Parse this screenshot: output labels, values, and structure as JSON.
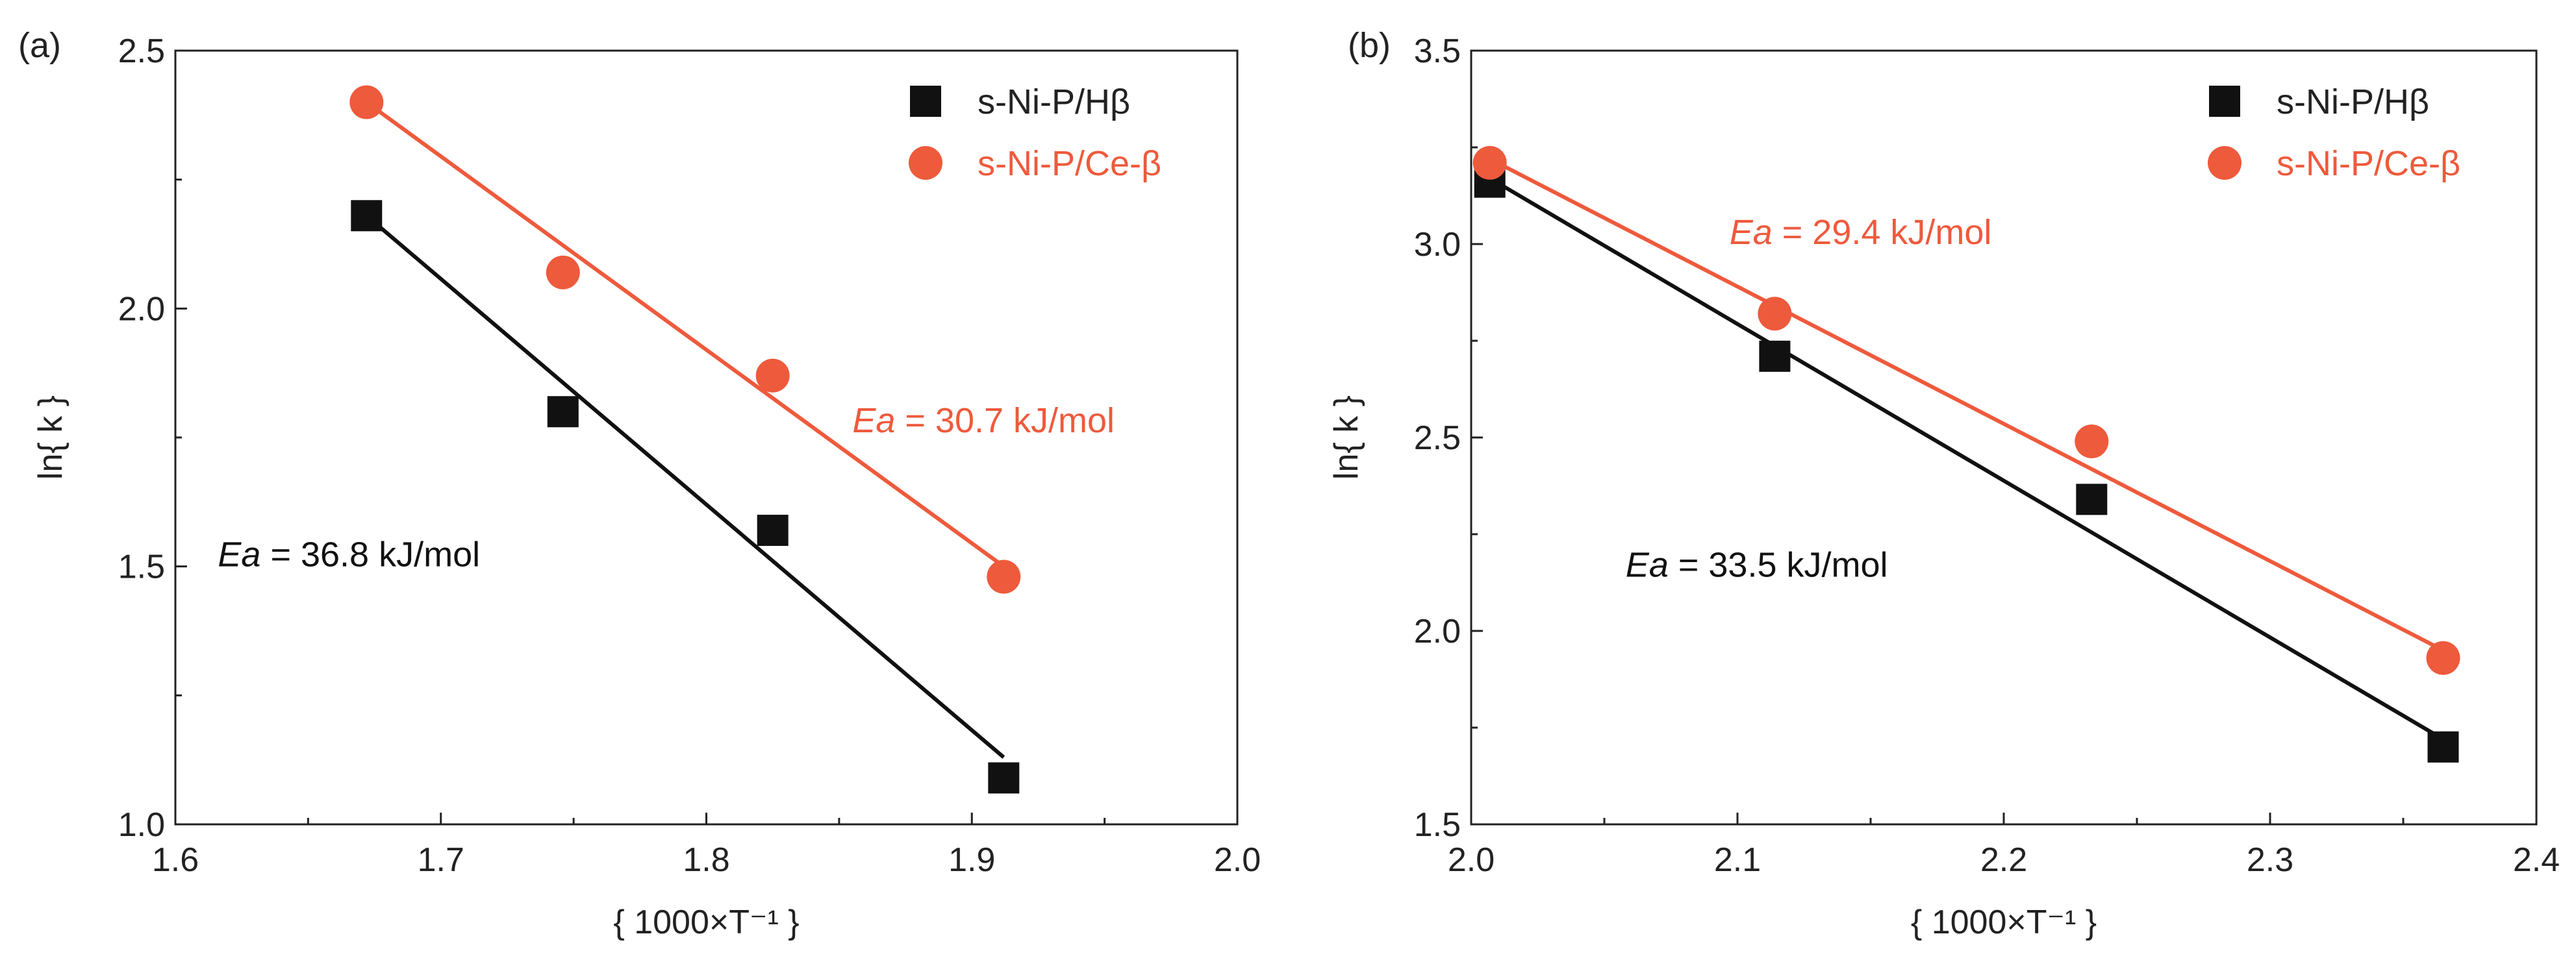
{
  "colors": {
    "black_series": "#111111",
    "red_series": "#ee5a3c",
    "axis": "#222222"
  },
  "chart_data": [
    {
      "type": "scatter",
      "panel_label": "(a)",
      "xlabel": "{ 1000×T⁻¹ }",
      "ylabel": "ln{ k }",
      "xlim": [
        1.6,
        2.0
      ],
      "ylim": [
        1.0,
        2.5
      ],
      "x_ticks": [
        "1.6",
        "1.7",
        "1.8",
        "1.9",
        "2.0"
      ],
      "y_ticks": [
        "1.0",
        "1.5",
        "2.0",
        "2.5"
      ],
      "legend_position": "top-right",
      "series": [
        {
          "name": "s-Ni-P/Hβ",
          "marker": "square",
          "color": "#111111",
          "x": [
            1.672,
            1.746,
            1.825,
            1.912
          ],
          "y": [
            2.18,
            1.8,
            1.57,
            1.09
          ],
          "fit": {
            "x": [
              1.672,
              1.912
            ],
            "y": [
              2.18,
              1.13
            ]
          },
          "annotation": {
            "label": "Ea",
            "text": " = 36.8 kJ/mol",
            "x": 1.616,
            "y": 1.5
          }
        },
        {
          "name": "s-Ni-P/Ce-β",
          "marker": "circle",
          "color": "#ee5a3c",
          "x": [
            1.672,
            1.746,
            1.825,
            1.912
          ],
          "y": [
            2.4,
            2.07,
            1.87,
            1.48
          ],
          "fit": {
            "x": [
              1.672,
              1.912
            ],
            "y": [
              2.4,
              1.5
            ]
          },
          "annotation": {
            "label": "Ea",
            "text": " = 30.7 kJ/mol",
            "x": 1.855,
            "y": 1.76
          }
        }
      ]
    },
    {
      "type": "scatter",
      "panel_label": "(b)",
      "xlabel": "{ 1000×T⁻¹ }",
      "ylabel": "ln{ k }",
      "xlim": [
        2.0,
        2.4
      ],
      "ylim": [
        1.5,
        3.5
      ],
      "x_ticks": [
        "2.0",
        "2.1",
        "2.2",
        "2.3",
        "2.4"
      ],
      "y_ticks": [
        "1.5",
        "2.0",
        "2.5",
        "3.0",
        "3.5"
      ],
      "legend_position": "top-right",
      "series": [
        {
          "name": "s-Ni-P/Hβ",
          "marker": "square",
          "color": "#111111",
          "x": [
            2.007,
            2.114,
            2.233,
            2.365
          ],
          "y": [
            3.16,
            2.71,
            2.34,
            1.7
          ],
          "fit": {
            "x": [
              2.007,
              2.365
            ],
            "y": [
              3.17,
              1.72
            ]
          },
          "annotation": {
            "label": "Ea",
            "text": " = 33.5 kJ/mol",
            "x": 2.058,
            "y": 2.14
          }
        },
        {
          "name": "s-Ni-P/Ce-β",
          "marker": "circle",
          "color": "#ee5a3c",
          "x": [
            2.007,
            2.114,
            2.233,
            2.365
          ],
          "y": [
            3.21,
            2.82,
            2.49,
            1.93
          ],
          "fit": {
            "x": [
              2.007,
              2.365
            ],
            "y": [
              3.22,
              1.95
            ]
          },
          "annotation": {
            "label": "Ea",
            "text": " = 29.4 kJ/mol",
            "x": 2.097,
            "y": 3.0
          }
        }
      ]
    }
  ]
}
